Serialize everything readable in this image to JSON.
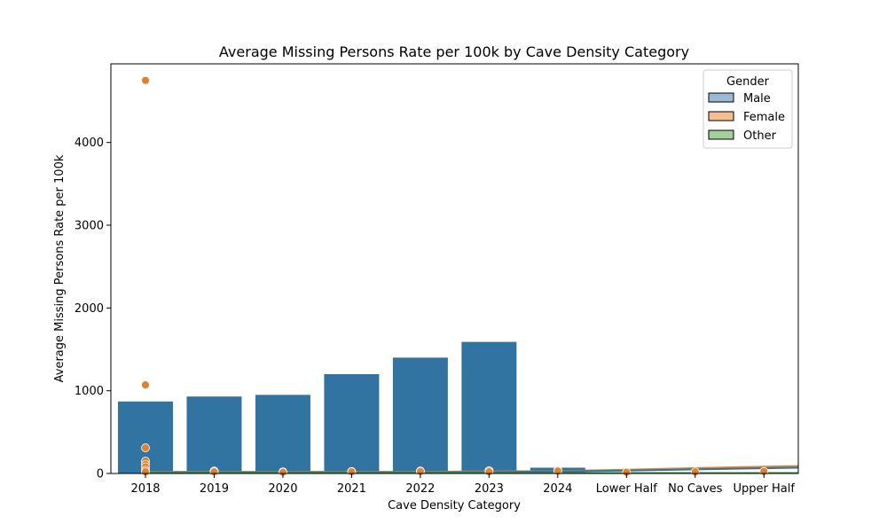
{
  "chart_data": {
    "type": "bar",
    "title": "Average Missing Persons Rate per 100k by Cave Density Category",
    "xlabel": "Cave Density Category",
    "ylabel": "Average Missing Persons Rate per 100k",
    "categories": [
      "2018",
      "2019",
      "2020",
      "2021",
      "2022",
      "2023",
      "2024",
      "Lower Half",
      "No Caves",
      "Upper Half"
    ],
    "yticks": [
      0,
      1000,
      2000,
      3000,
      4000
    ],
    "ylim": [
      0,
      5000
    ],
    "grid": false,
    "series": [
      {
        "kind": "bar",
        "color": "#3274a1",
        "values": [
          870,
          930,
          950,
          1200,
          1400,
          1590,
          70,
          0,
          0,
          0
        ]
      },
      {
        "kind": "scatter",
        "color": "#e1812c",
        "points": [
          {
            "x": "2018",
            "y": 4750
          },
          {
            "x": "2018",
            "y": 1070
          },
          {
            "x": "2018",
            "y": 310
          },
          {
            "x": "2018",
            "y": 150
          },
          {
            "x": "2018",
            "y": 110
          },
          {
            "x": "2018",
            "y": 80
          },
          {
            "x": "2018",
            "y": 40
          },
          {
            "x": "2018",
            "y": 20
          },
          {
            "x": "2019",
            "y": 30
          },
          {
            "x": "2019",
            "y": 25
          },
          {
            "x": "2019",
            "y": 20
          },
          {
            "x": "2020",
            "y": 20
          },
          {
            "x": "2020",
            "y": 15
          },
          {
            "x": "2021",
            "y": 25
          },
          {
            "x": "2021",
            "y": 20
          },
          {
            "x": "2022",
            "y": 30
          },
          {
            "x": "2022",
            "y": 25
          },
          {
            "x": "2023",
            "y": 35
          },
          {
            "x": "2023",
            "y": 20
          },
          {
            "x": "2024",
            "y": 40
          },
          {
            "x": "2024",
            "y": 30
          },
          {
            "x": "Lower Half",
            "y": 15
          },
          {
            "x": "No Caves",
            "y": 20
          },
          {
            "x": "Upper Half",
            "y": 25
          }
        ]
      },
      {
        "kind": "line",
        "color": "#e1812c",
        "x": [
          "2018",
          "2019",
          "2020",
          "2021",
          "2022",
          "2023",
          "2024",
          "Lower Half",
          "No Caves",
          "Upper Half"
        ],
        "values": [
          20,
          20,
          20,
          20,
          20,
          25,
          30,
          45,
          65,
          90
        ]
      },
      {
        "kind": "line",
        "color": "#3274a1",
        "x": [
          "2018",
          "2019",
          "2020",
          "2021",
          "2022",
          "2023",
          "2024",
          "Lower Half",
          "No Caves",
          "Upper Half"
        ],
        "values": [
          15,
          15,
          15,
          15,
          15,
          18,
          25,
          35,
          50,
          70
        ]
      },
      {
        "kind": "line",
        "color": "#3a923a",
        "x": [
          "2018",
          "2019",
          "2020",
          "2021",
          "2022",
          "2023",
          "2024",
          "Lower Half",
          "No Caves",
          "Upper Half"
        ],
        "values": [
          5,
          5,
          5,
          5,
          5,
          5,
          5,
          5,
          5,
          5
        ]
      }
    ],
    "legend": {
      "title": "Gender",
      "placement": "top-right",
      "entries": [
        {
          "label": "Male",
          "color": "#3274a1",
          "fill": "#9bbad4"
        },
        {
          "label": "Female",
          "color": "#e1812c",
          "fill": "#f5bf92"
        },
        {
          "label": "Other",
          "color": "#3a923a",
          "fill": "#a2cf9c"
        }
      ]
    }
  }
}
